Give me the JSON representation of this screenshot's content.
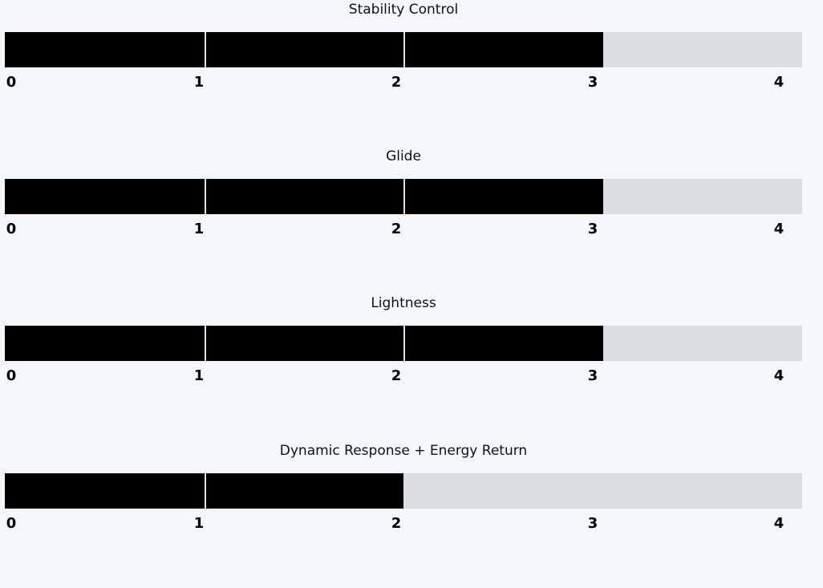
{
  "chart_data": {
    "type": "bar",
    "orientation": "horizontal",
    "style": "segmented-rating",
    "categories": [
      "Stability Control",
      "Glide",
      "Lightness",
      "Dynamic Response + Energy Return"
    ],
    "values": [
      3,
      3,
      3,
      2
    ],
    "xlim": [
      0,
      4
    ],
    "ticks": [
      "0",
      "1",
      "2",
      "3",
      "4"
    ],
    "grid": false,
    "colors": {
      "fill": "#000000",
      "track": "#dadde2",
      "background": "#f3f6fb",
      "separator": "#cccccc"
    }
  }
}
